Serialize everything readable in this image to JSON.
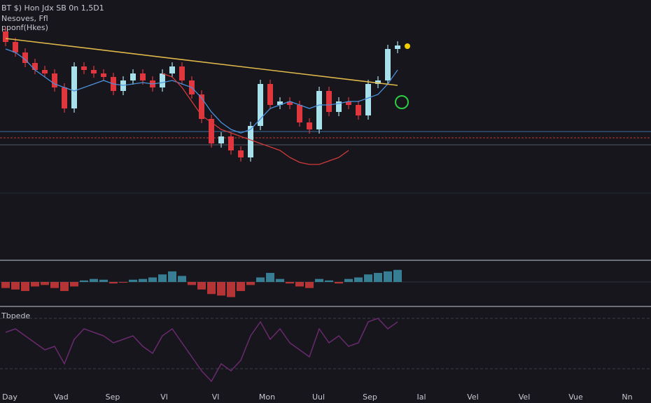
{
  "chart_data": [
    {
      "type": "candlestick",
      "title": "BT $) Hon Jdx SB 0n 1,5D1",
      "subtitle": "Nesoves, Ffl",
      "annotation": "pponf(Hkes)",
      "up_color": "#a8e0ec",
      "down_color": "#e0363d",
      "ylim": [
        20,
        250
      ],
      "open": [
        225,
        210,
        195,
        180,
        170,
        165,
        145,
        115,
        175,
        170,
        165,
        160,
        140,
        155,
        165,
        155,
        145,
        165,
        175,
        155,
        135,
        100,
        65,
        75,
        55,
        45,
        90,
        150,
        120,
        125,
        120,
        95,
        85,
        140,
        110,
        125,
        120,
        105,
        150,
        155,
        200
      ],
      "high": [
        231,
        216,
        201,
        186,
        176,
        171,
        151,
        181,
        181,
        176,
        171,
        166,
        161,
        171,
        171,
        161,
        171,
        181,
        181,
        161,
        141,
        106,
        81,
        81,
        61,
        96,
        156,
        156,
        131,
        131,
        126,
        101,
        146,
        146,
        131,
        131,
        126,
        156,
        161,
        206,
        211
      ],
      "low": [
        204,
        189,
        174,
        164,
        159,
        139,
        109,
        109,
        164,
        159,
        154,
        134,
        134,
        149,
        149,
        139,
        139,
        159,
        149,
        129,
        94,
        59,
        59,
        49,
        39,
        39,
        84,
        114,
        114,
        114,
        89,
        79,
        79,
        104,
        104,
        114,
        99,
        99,
        144,
        149,
        194
      ],
      "close": [
        210,
        195,
        180,
        170,
        165,
        145,
        115,
        175,
        170,
        165,
        160,
        140,
        155,
        165,
        155,
        145,
        165,
        175,
        155,
        135,
        100,
        65,
        75,
        55,
        45,
        90,
        150,
        120,
        125,
        120,
        95,
        85,
        140,
        110,
        125,
        120,
        105,
        150,
        155,
        200,
        205
      ],
      "series": [
        {
          "color": "#4a90d9",
          "values": [
            200,
            195,
            185,
            170,
            160,
            150,
            145,
            140,
            145,
            150,
            155,
            150,
            148,
            150,
            152,
            150,
            152,
            155,
            150,
            145,
            130,
            110,
            95,
            85,
            80,
            85,
            100,
            115,
            120,
            125,
            120,
            115,
            120,
            120,
            122,
            125,
            125,
            130,
            135,
            150,
            170
          ]
        },
        {
          "color": "#d13a3a",
          "values": [
            null,
            null,
            null,
            null,
            null,
            null,
            null,
            null,
            null,
            null,
            null,
            null,
            null,
            null,
            null,
            null,
            165,
            160,
            145,
            125,
            105,
            95,
            85,
            80,
            75,
            70,
            65,
            60,
            55,
            45,
            38,
            35,
            35,
            40,
            45,
            55,
            null,
            null,
            null,
            null,
            null
          ]
        }
      ],
      "trendline": {
        "color": "#e0b84a",
        "x": [
          0,
          40
        ],
        "values": [
          215,
          148
        ]
      },
      "levels": [
        {
          "value": 82,
          "color": "#3a6ea5"
        },
        {
          "value": 73,
          "color": "#c0392b"
        },
        {
          "value": 63,
          "color": "#555a66"
        }
      ],
      "marker": {
        "index": 41,
        "value": 204,
        "color": "#f0d000"
      }
    },
    {
      "type": "bar",
      "ylim": [
        -25,
        25
      ],
      "up_color": "#3d8fa8",
      "down_color": "#d13a3a",
      "values": [
        -8,
        -10,
        -12,
        -6,
        -4,
        -8,
        -12,
        -6,
        2,
        4,
        3,
        -2,
        -1,
        3,
        4,
        6,
        10,
        14,
        8,
        -4,
        -10,
        -16,
        -18,
        -20,
        -12,
        -4,
        6,
        12,
        4,
        -2,
        -6,
        -8,
        4,
        2,
        -2,
        4,
        6,
        10,
        12,
        14,
        16
      ]
    },
    {
      "type": "line",
      "title": "Tbpede",
      "ylim": [
        0,
        110
      ],
      "color": "#6a2a6e",
      "values": [
        80,
        85,
        75,
        65,
        55,
        60,
        35,
        70,
        85,
        80,
        75,
        65,
        70,
        75,
        60,
        50,
        75,
        85,
        65,
        45,
        25,
        10,
        35,
        25,
        40,
        75,
        95,
        70,
        85,
        65,
        55,
        45,
        85,
        65,
        75,
        60,
        65,
        95,
        100,
        85,
        95
      ],
      "levels": [
        {
          "value": 100,
          "color": "#3a3d48"
        },
        {
          "value": 28,
          "color": "#3a3d48"
        }
      ],
      "xlabels": [
        "Day",
        "Vad",
        "Sep",
        "Vl",
        "Vl",
        "Mon",
        "Uul",
        "Sep",
        "Ial",
        "Vel",
        "Vel",
        "Vue",
        "Nn"
      ]
    }
  ]
}
